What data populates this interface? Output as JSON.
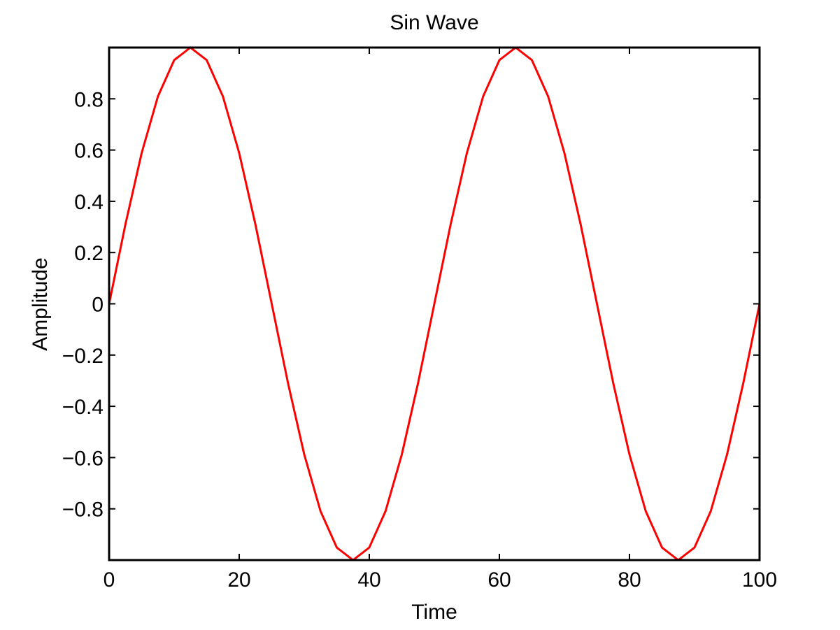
{
  "chart_data": {
    "type": "line",
    "title": "Sin Wave",
    "xlabel": "Time",
    "ylabel": "Amplitude",
    "xlim": [
      0,
      100
    ],
    "ylim": [
      -1,
      1
    ],
    "x_ticks": [
      0,
      20,
      40,
      60,
      80,
      100
    ],
    "x_tick_labels": [
      "0",
      "20",
      "40",
      "60",
      "80",
      "100"
    ],
    "y_ticks": [
      -0.8,
      -0.6,
      -0.4,
      -0.2,
      0,
      0.2,
      0.4,
      0.6,
      0.8
    ],
    "y_tick_labels": [
      "−0.8",
      "−0.6",
      "−0.4",
      "−0.2",
      "0",
      "0.2",
      "0.4",
      "0.6",
      "0.8"
    ],
    "grid": false,
    "legend": "none",
    "series": [
      {
        "color": "#ff0000",
        "x": [
          0,
          2.5,
          5,
          7.5,
          10,
          12.5,
          15,
          17.5,
          20,
          22.5,
          25,
          27.5,
          30,
          32.5,
          35,
          37.5,
          40,
          42.5,
          45,
          47.5,
          50,
          52.5,
          55,
          57.5,
          60,
          62.5,
          65,
          67.5,
          70,
          72.5,
          75,
          77.5,
          80,
          82.5,
          85,
          87.5,
          90,
          92.5,
          95,
          97.5,
          100
        ],
        "y": [
          0,
          0.309,
          0.588,
          0.809,
          0.951,
          1,
          0.951,
          0.809,
          0.588,
          0.309,
          0,
          -0.309,
          -0.588,
          -0.809,
          -0.951,
          -1,
          -0.951,
          -0.809,
          -0.588,
          -0.309,
          0,
          0.309,
          0.588,
          0.809,
          0.951,
          1,
          0.951,
          0.809,
          0.588,
          0.309,
          0,
          -0.309,
          -0.588,
          -0.809,
          -0.951,
          -1,
          -0.951,
          -0.809,
          -0.588,
          -0.309,
          0
        ]
      }
    ]
  }
}
